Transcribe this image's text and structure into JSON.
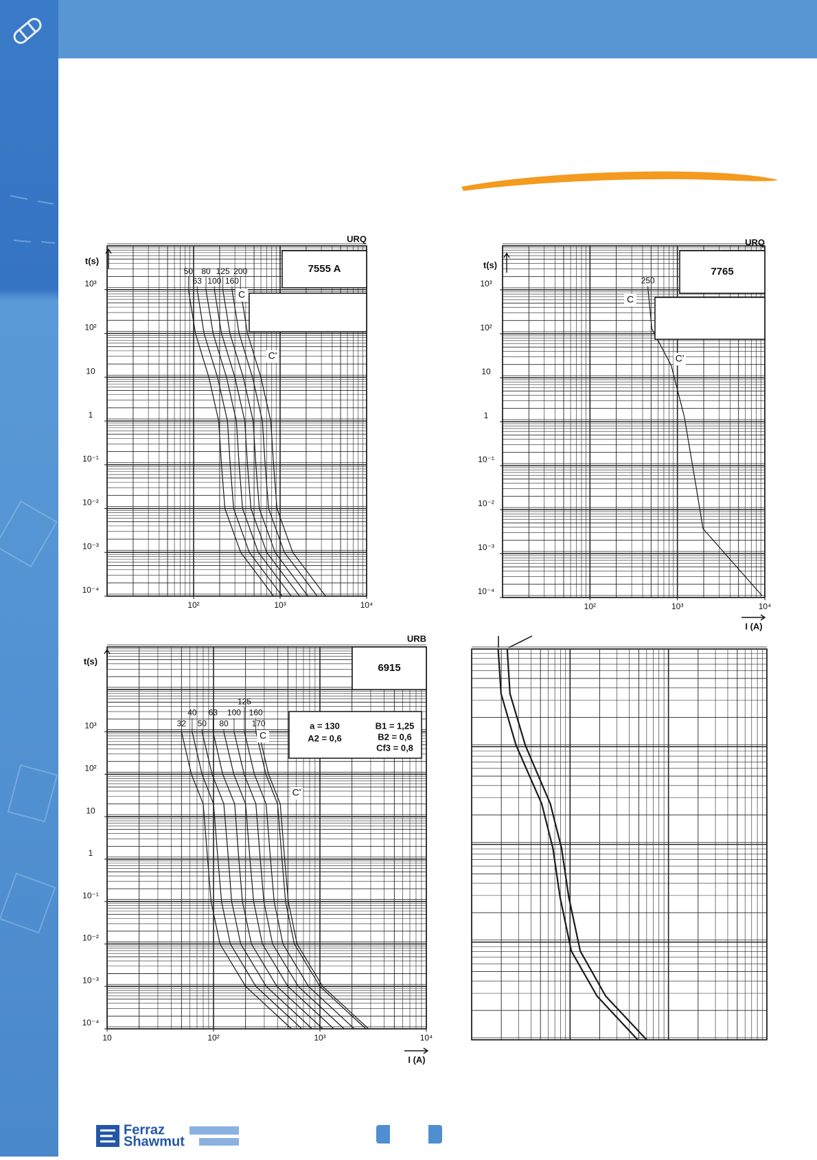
{
  "chart_data": [
    {
      "type": "line",
      "title": "URQ",
      "subtitle": "7555 A",
      "y_label": "t(s)",
      "log_x": true,
      "log_y": true,
      "grid": true,
      "xlim": [
        10,
        10000
      ],
      "ylim": [
        0.0001,
        10000
      ],
      "xticks": [
        {
          "value": 100,
          "label": "10²"
        },
        {
          "value": 1000,
          "label": "10³"
        },
        {
          "value": 10000,
          "label": "10⁴"
        }
      ],
      "yticks": [
        {
          "value": 1000,
          "label": "10³"
        },
        {
          "value": 100,
          "label": "10²"
        },
        10,
        1,
        {
          "value": 0.1,
          "label": "10⁻¹"
        },
        {
          "value": 0.01,
          "label": "10⁻²"
        },
        {
          "value": 0.001,
          "label": "10⁻³"
        },
        {
          "value": 0.0001,
          "label": "10⁻⁴"
        }
      ],
      "annotations": [
        "C",
        "C'"
      ],
      "series": [
        {
          "name": "50",
          "color": "#1a1a1a",
          "x": [
            87,
            105,
            150,
            195,
            210,
            230,
            350,
            840
          ],
          "values": [
            1000,
            100,
            10,
            1,
            0.1,
            0.01,
            0.001,
            0.0001
          ]
        },
        {
          "name": "63",
          "color": "#1a1a1a",
          "x": [
            110,
            132,
            189,
            246,
            265,
            290,
            441,
            1058
          ],
          "values": [
            1000,
            100,
            10,
            1,
            0.1,
            0.01,
            0.001,
            0.0001
          ]
        },
        {
          "name": "80",
          "color": "#1a1a1a",
          "x": [
            139,
            168,
            240,
            312,
            336,
            368,
            560,
            1344
          ],
          "values": [
            1000,
            100,
            10,
            1,
            0.1,
            0.01,
            0.001,
            0.0001
          ]
        },
        {
          "name": "100",
          "color": "#1a1a1a",
          "x": [
            174,
            210,
            300,
            390,
            420,
            460,
            700,
            1680
          ],
          "values": [
            1000,
            100,
            10,
            1,
            0.1,
            0.01,
            0.001,
            0.0001
          ]
        },
        {
          "name": "125",
          "color": "#1a1a1a",
          "x": [
            218,
            263,
            375,
            488,
            525,
            575,
            875,
            2100
          ],
          "values": [
            1000,
            100,
            10,
            1,
            0.1,
            0.01,
            0.001,
            0.0001
          ]
        },
        {
          "name": "160",
          "color": "#1a1a1a",
          "x": [
            278,
            336,
            480,
            624,
            672,
            736,
            1120,
            2688
          ],
          "values": [
            1000,
            100,
            10,
            1,
            0.1,
            0.01,
            0.001,
            0.0001
          ]
        },
        {
          "name": "200",
          "color": "#1a1a1a",
          "x": [
            348,
            420,
            600,
            780,
            840,
            920,
            1400,
            3360
          ],
          "values": [
            1000,
            100,
            10,
            1,
            0.1,
            0.01,
            0.001,
            0.0001
          ]
        }
      ]
    },
    {
      "type": "line",
      "title": "URQ",
      "subtitle": "7765",
      "y_label": "t(s)",
      "x_label": "I (A)",
      "log_x": true,
      "log_y": true,
      "grid": true,
      "xlim": [
        10,
        10000
      ],
      "ylim": [
        0.0001,
        10000
      ],
      "xticks": [
        {
          "value": 100,
          "label": "10²"
        },
        {
          "value": 1000,
          "label": "10³"
        },
        {
          "value": 10000,
          "label": "10⁴"
        }
      ],
      "yticks": [
        {
          "value": 1000,
          "label": "10³"
        },
        {
          "value": 100,
          "label": "10²"
        },
        10,
        1,
        {
          "value": 0.1,
          "label": "10⁻¹"
        },
        {
          "value": 0.01,
          "label": "10⁻²"
        },
        {
          "value": 0.001,
          "label": "10⁻³"
        },
        {
          "value": 0.0001,
          "label": "10⁻⁴"
        }
      ],
      "annotations": [
        "C",
        "C'"
      ],
      "series": [
        {
          "name": "250",
          "color": "#1a1a1a",
          "x": [
            460,
            510,
            850,
            1200,
            1620,
            1960,
            9300
          ],
          "values": [
            1100,
            130,
            19,
            1.3,
            0.038,
            0.0037,
            0.00011
          ]
        }
      ]
    },
    {
      "type": "line",
      "title": "URB",
      "subtitle": "6915",
      "y_label": "t(s)",
      "x_label": "I (A)",
      "log_x": true,
      "log_y": true,
      "grid": true,
      "xlim": [
        10,
        10000
      ],
      "ylim": [
        0.0001,
        100000
      ],
      "xticks": [
        10,
        {
          "value": 100,
          "label": "10²"
        },
        {
          "value": 1000,
          "label": "10³"
        },
        {
          "value": 10000,
          "label": "10⁴"
        }
      ],
      "yticks": [
        {
          "value": 1000,
          "label": "10³"
        },
        {
          "value": 100,
          "label": "10²"
        },
        10,
        1,
        {
          "value": 0.1,
          "label": "10⁻¹"
        },
        {
          "value": 0.01,
          "label": "10⁻²"
        },
        {
          "value": 0.001,
          "label": "10⁻³"
        },
        {
          "value": 0.0001,
          "label": "10⁻⁴"
        }
      ],
      "annotations": [
        "C",
        "C'"
      ],
      "parameters": [
        "a = 130",
        "A2 = 0,6",
        "B1 = 1,25",
        "B2 = 0,6",
        "Cf3 = 0,8"
      ],
      "series": [
        {
          "name": "32",
          "color": "#1a1a1a",
          "x": [
            50,
            62,
            80,
            88,
            95,
            115,
            200,
            540
          ],
          "values": [
            1000,
            100,
            20,
            1,
            0.1,
            0.01,
            0.001,
            0.0001
          ]
        },
        {
          "name": "40",
          "color": "#1a1a1a",
          "x": [
            63,
            78,
            100,
            110,
            119,
            144,
            250,
            675
          ],
          "values": [
            1000,
            100,
            20,
            1,
            0.1,
            0.01,
            0.001,
            0.0001
          ]
        },
        {
          "name": "50",
          "color": "#1a1a1a",
          "x": [
            78,
            97,
            125,
            138,
            148,
            180,
            313,
            844
          ],
          "values": [
            1000,
            100,
            20,
            1,
            0.1,
            0.01,
            0.001,
            0.0001
          ]
        },
        {
          "name": "63",
          "color": "#1a1a1a",
          "x": [
            99,
            122,
            158,
            173,
            187,
            227,
            394,
            1064
          ],
          "values": [
            1000,
            100,
            20,
            1,
            0.1,
            0.01,
            0.001,
            0.0001
          ]
        },
        {
          "name": "80",
          "color": "#1a1a1a",
          "x": [
            125,
            155,
            200,
            220,
            238,
            288,
            500,
            1350
          ],
          "values": [
            1000,
            100,
            20,
            1,
            0.1,
            0.01,
            0.001,
            0.0001
          ]
        },
        {
          "name": "100",
          "color": "#1a1a1a",
          "x": [
            156,
            194,
            250,
            275,
            297,
            359,
            625,
            1688
          ],
          "values": [
            1000,
            100,
            20,
            1,
            0.1,
            0.01,
            0.001,
            0.0001
          ]
        },
        {
          "name": "125",
          "color": "#1a1a1a",
          "x": [
            195,
            242,
            312,
            343,
            371,
            449,
            780,
            2106
          ],
          "values": [
            1000,
            100,
            20,
            1,
            0.1,
            0.01,
            0.001,
            0.0001
          ]
        },
        {
          "name": "160",
          "color": "#1a1a1a",
          "x": [
            250,
            310,
            400,
            440,
            475,
            575,
            1000,
            2700
          ],
          "values": [
            1000,
            100,
            20,
            1,
            0.1,
            0.01,
            0.001,
            0.0001
          ]
        },
        {
          "name": "170",
          "color": "#1a1a1a",
          "x": [
            265,
            329,
            424,
            466,
            504,
            610,
            1060,
            2862
          ],
          "values": [
            1000,
            100,
            20,
            1,
            0.1,
            0.01,
            0.001,
            0.0001
          ]
        }
      ]
    },
    {
      "type": "line",
      "log_x": true,
      "log_y": true,
      "grid": true,
      "xlim": [
        1,
        1000
      ],
      "ylim": [
        0.001,
        10
      ],
      "series": [
        {
          "color": "#1a1a1a",
          "x": [
            1.86,
            1.99,
            2.82,
            5.16,
            6.7,
            7.9,
            10.3,
            18.8,
            48.7
          ],
          "values": [
            10,
            3.5,
            1.04,
            0.26,
            0.091,
            0.029,
            0.0081,
            0.0028,
            0.001
          ]
        },
        {
          "color": "#1a1a1a",
          "x": [
            2.3,
            2.45,
            3.5,
            6.3,
            8.2,
            9.7,
            12.7,
            23,
            60
          ],
          "values": [
            10,
            3.5,
            1.04,
            0.26,
            0.091,
            0.029,
            0.0081,
            0.0028,
            0.001
          ]
        }
      ]
    }
  ],
  "footer": {
    "logo": [
      "Ferraz",
      "Shawmut"
    ]
  }
}
